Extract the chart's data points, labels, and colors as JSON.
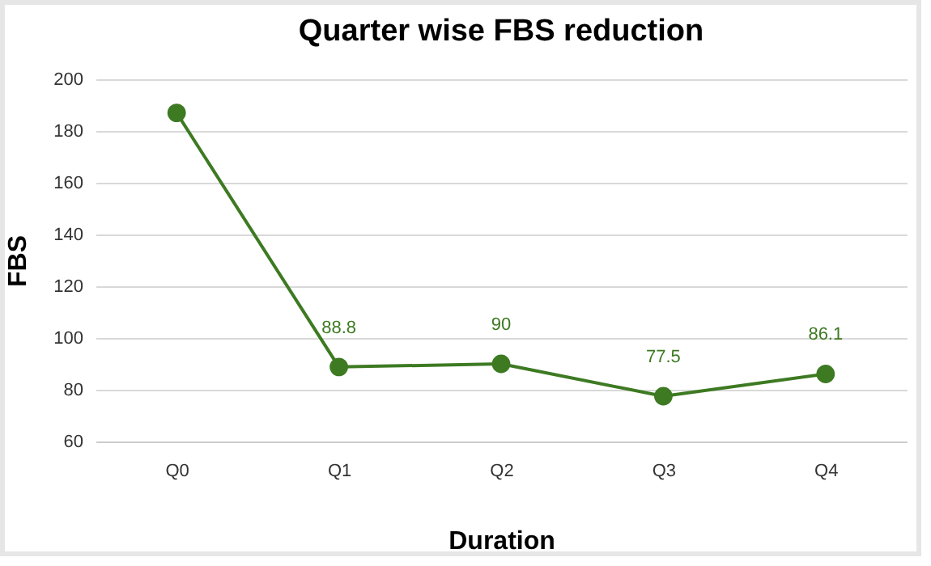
{
  "chart_data": {
    "type": "line",
    "title": "Quarter wise FBS reduction",
    "xlabel": "Duration",
    "ylabel": "FBS",
    "categories": [
      "Q0",
      "Q1",
      "Q2",
      "Q3",
      "Q4"
    ],
    "series": [
      {
        "color": "#3d7a22",
        "values": [
          187,
          88.8,
          90,
          77.5,
          86.1
        ],
        "value_labels": [
          null,
          "88.8",
          "90",
          "77.5",
          "86.1"
        ]
      }
    ],
    "ylim": [
      60,
      200
    ],
    "yticks": [
      60,
      80,
      100,
      120,
      140,
      160,
      180,
      200
    ],
    "grid": "y",
    "marker": "circle",
    "line_style": "solid",
    "legend": false
  }
}
